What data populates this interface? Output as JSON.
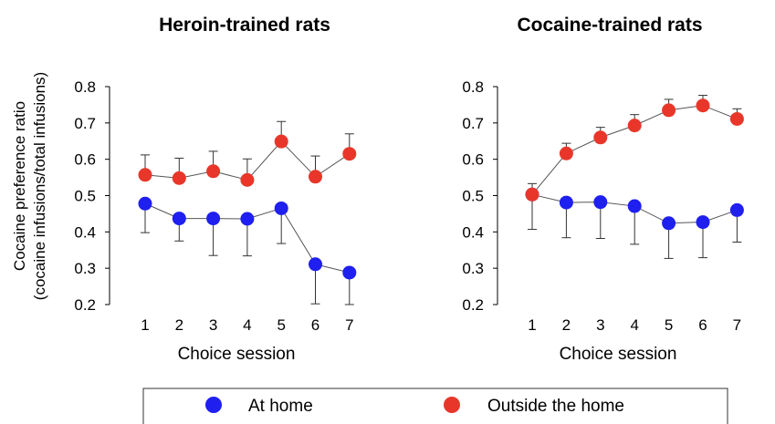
{
  "figure": {
    "y_axis_label_line1": "Cocaine preference ratio",
    "y_axis_label_line2": "(cocaine infusions/total infusions)"
  },
  "legend": {
    "items": [
      {
        "label": "At home",
        "color": "#1f1ff0"
      },
      {
        "label": "Outside the home",
        "color": "#e8372a"
      }
    ]
  },
  "chart_data": [
    {
      "type": "line",
      "title": "Heroin-trained rats",
      "xlabel": "Choice session",
      "ylabel": "Cocaine preference ratio (cocaine infusions/total infusions)",
      "x": [
        1,
        2,
        3,
        4,
        5,
        6,
        7
      ],
      "ylim": [
        0.2,
        0.8
      ],
      "yticks": [
        "0.2",
        "0.3",
        "0.4",
        "0.5",
        "0.6",
        "0.7",
        "0.8"
      ],
      "grid": false,
      "series": [
        {
          "name": "At home",
          "color": "#1f1ff0",
          "error_dir": "down",
          "values": [
            0.478,
            0.437,
            0.437,
            0.436,
            0.465,
            0.311,
            0.288
          ],
          "errors": [
            0.08,
            0.062,
            0.102,
            0.102,
            0.097,
            0.109,
            0.088
          ]
        },
        {
          "name": "Outside the home",
          "color": "#e8372a",
          "error_dir": "up",
          "values": [
            0.557,
            0.548,
            0.567,
            0.543,
            0.649,
            0.552,
            0.615
          ],
          "errors": [
            0.055,
            0.055,
            0.055,
            0.058,
            0.055,
            0.057,
            0.055
          ]
        }
      ]
    },
    {
      "type": "line",
      "title": "Cocaine-trained rats",
      "xlabel": "Choice session",
      "ylabel": "",
      "x": [
        1,
        2,
        3,
        4,
        5,
        6,
        7
      ],
      "ylim": [
        0.2,
        0.8
      ],
      "yticks": [
        "0.2",
        "0.3",
        "0.4",
        "0.5",
        "0.6",
        "0.7",
        "0.8"
      ],
      "grid": false,
      "series": [
        {
          "name": "At home",
          "color": "#1f1ff0",
          "error_dir": "down",
          "values": [
            0.503,
            0.481,
            0.482,
            0.471,
            0.424,
            0.427,
            0.46
          ],
          "errors": [
            0.096,
            0.097,
            0.1,
            0.105,
            0.097,
            0.098,
            0.088
          ]
        },
        {
          "name": "Outside the home",
          "color": "#e8372a",
          "error_dir": "up",
          "values": [
            0.503,
            0.616,
            0.66,
            0.693,
            0.735,
            0.748,
            0.711
          ],
          "errors": [
            0.03,
            0.028,
            0.028,
            0.03,
            0.03,
            0.028,
            0.028
          ]
        }
      ]
    }
  ]
}
